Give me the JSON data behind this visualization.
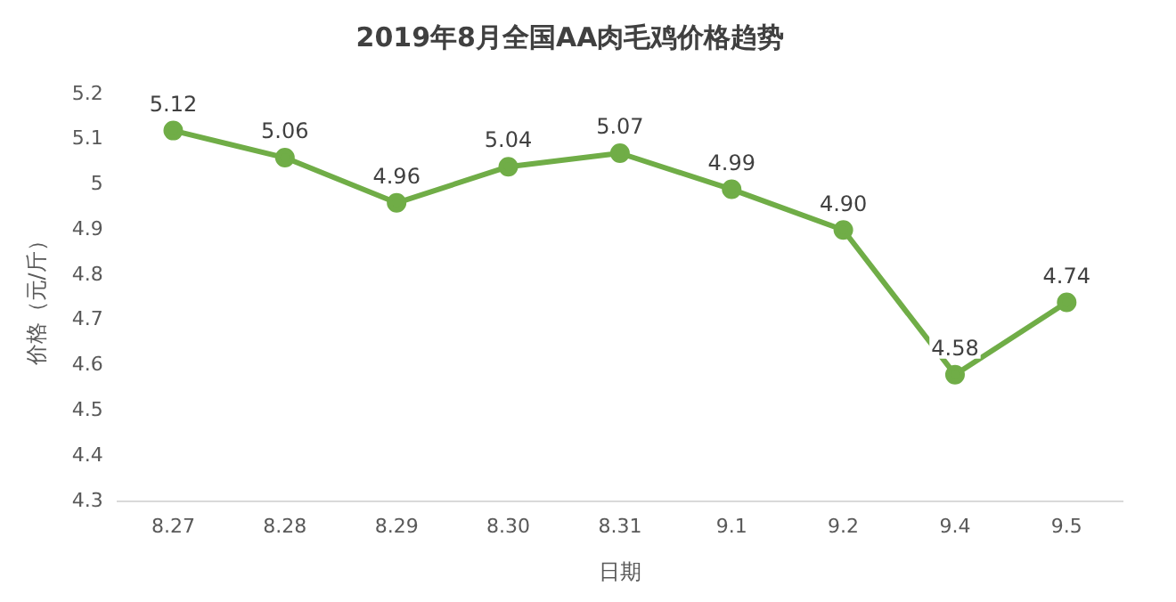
{
  "chart_data": {
    "type": "line",
    "title": "2019年8月全国AA肉毛鸡价格趋势",
    "xlabel": "日期",
    "ylabel": "价格（元/斤）",
    "categories": [
      "8.27",
      "8.28",
      "8.29",
      "8.30",
      "8.31",
      "9.1",
      "9.2",
      "9.4",
      "9.5"
    ],
    "values": [
      5.12,
      5.06,
      4.96,
      5.04,
      5.07,
      4.99,
      4.9,
      4.58,
      4.74
    ],
    "value_labels": [
      "5.12",
      "5.06",
      "4.96",
      "5.04",
      "5.07",
      "4.99",
      "4.90",
      "4.58",
      "4.74"
    ],
    "color": "#70ad47",
    "marker": "circle",
    "line_style": "solid",
    "ylim": [
      4.3,
      5.2
    ],
    "yticks": [
      4.3,
      4.4,
      4.5,
      4.6,
      4.7,
      4.8,
      4.9,
      {
        "value": 5,
        "label": "5"
      },
      5.1,
      5.2
    ],
    "grid": false,
    "legend": false
  }
}
